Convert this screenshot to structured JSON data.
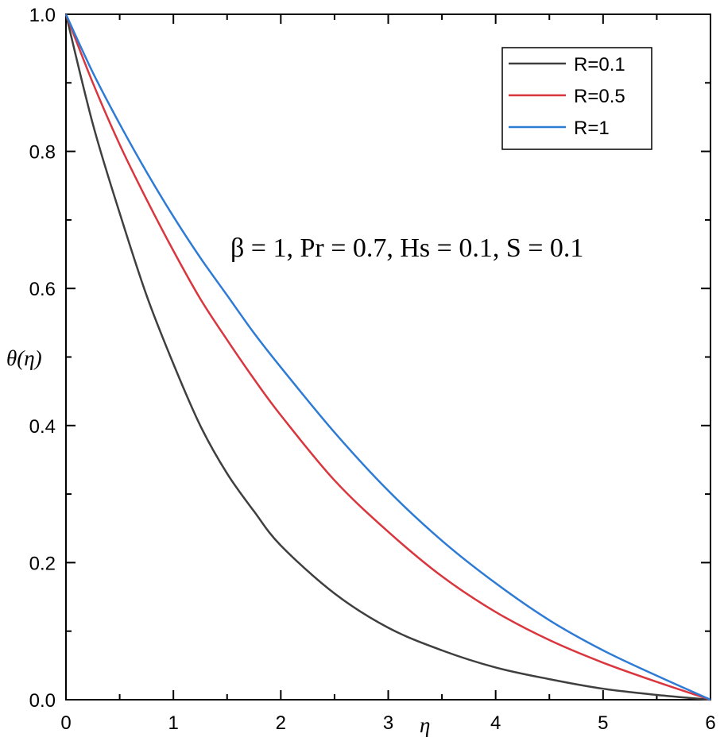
{
  "chart_data": {
    "type": "line",
    "xlabel": "η",
    "ylabel": "θ(η)",
    "xlim": [
      0,
      6
    ],
    "ylim": [
      0,
      1.0
    ],
    "x_ticks": [
      "0",
      "1",
      "2",
      "3",
      "4",
      "5",
      "6"
    ],
    "y_ticks": [
      "0.0",
      "0.2",
      "0.4",
      "0.6",
      "0.8",
      "1.0"
    ],
    "grid": false,
    "legend_position": "top-right",
    "annotation": "β = 1, Pr = 0.7, Hs = 0.1, S = 0.1",
    "x": [
      0,
      0.25,
      0.5,
      0.75,
      1.0,
      1.25,
      1.5,
      1.75,
      2.0,
      2.5,
      3.0,
      3.5,
      4.0,
      4.5,
      5.0,
      5.5,
      6.0
    ],
    "series": [
      {
        "name": "R=0.1",
        "color": "#3f3f3f",
        "values": [
          1.0,
          0.84,
          0.71,
          0.59,
          0.49,
          0.4,
          0.33,
          0.275,
          0.225,
          0.155,
          0.105,
          0.072,
          0.047,
          0.03,
          0.016,
          0.007,
          0.0
        ]
      },
      {
        "name": "R=0.5",
        "color": "#d9363e",
        "values": [
          1.0,
          0.9,
          0.81,
          0.73,
          0.655,
          0.585,
          0.525,
          0.468,
          0.415,
          0.32,
          0.245,
          0.18,
          0.128,
          0.087,
          0.054,
          0.026,
          0.0
        ]
      },
      {
        "name": "R=1",
        "color": "#2e7bd6",
        "values": [
          1.0,
          0.915,
          0.84,
          0.77,
          0.705,
          0.645,
          0.59,
          0.535,
          0.485,
          0.39,
          0.305,
          0.232,
          0.17,
          0.116,
          0.072,
          0.035,
          0.0
        ]
      }
    ]
  }
}
